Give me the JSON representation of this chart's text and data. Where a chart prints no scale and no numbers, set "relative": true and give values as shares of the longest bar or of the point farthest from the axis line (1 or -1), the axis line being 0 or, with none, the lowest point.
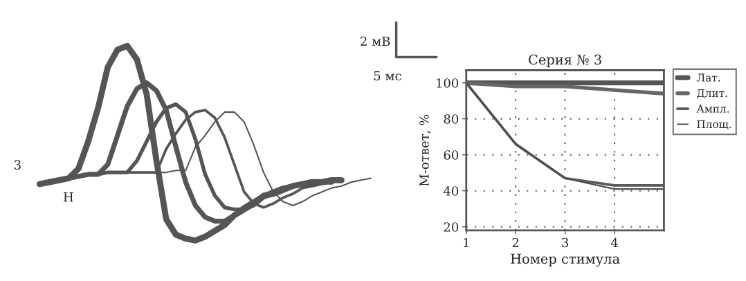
{
  "chart_data": [
    {
      "type": "line",
      "relative": true,
      "categories": [
        null,
        null,
        null,
        null,
        null,
        null,
        null,
        null,
        null,
        null,
        null,
        null,
        null,
        null,
        null,
        null,
        null,
        null,
        null,
        null,
        null,
        null,
        null,
        null,
        null,
        null,
        null,
        null,
        null,
        null,
        null,
        null,
        null,
        null,
        null
      ],
      "series": [
        {
          "color": "#555555",
          "values": [
            0.29,
            0.3,
            0.31,
            0.32,
            0.37,
            0.51,
            0.68,
            0.89,
            0.98,
            1.0,
            0.93,
            0.75,
            0.41,
            0.11,
            0.03,
            0.01,
            0.0,
            0.02,
            0.05,
            0.08,
            0.13,
            0.16,
            0.19,
            0.23,
            0.24,
            0.26,
            0.28,
            0.29,
            0.3,
            0.3,
            0.31,
            0.31,
            null,
            null,
            null
          ]
        },
        {
          "color": "#555555",
          "values": [
            0.29,
            0.3,
            0.31,
            0.32,
            0.33,
            0.34,
            0.34,
            0.39,
            0.54,
            0.69,
            0.78,
            0.81,
            0.77,
            0.67,
            0.48,
            0.3,
            0.18,
            0.12,
            0.1,
            0.1,
            0.13,
            0.17,
            0.2,
            0.23,
            0.25,
            0.27,
            0.28,
            0.29,
            0.3,
            0.3,
            0.3,
            null,
            null,
            null,
            null
          ]
        },
        {
          "color": "#555555",
          "values": [
            0.29,
            0.3,
            0.31,
            0.32,
            0.33,
            0.34,
            0.34,
            0.35,
            0.35,
            0.35,
            0.41,
            0.51,
            0.61,
            0.68,
            0.7,
            0.66,
            0.52,
            0.34,
            0.23,
            0.17,
            0.16,
            0.16,
            0.18,
            0.22,
            0.24,
            0.26,
            0.28,
            0.29,
            0.3,
            0.3,
            null,
            null,
            null,
            null,
            null
          ]
        },
        {
          "color": "#555555",
          "values": [
            0.29,
            0.3,
            0.31,
            0.32,
            0.33,
            0.34,
            0.34,
            0.35,
            0.35,
            0.35,
            0.35,
            0.35,
            0.35,
            0.47,
            0.55,
            0.62,
            0.66,
            0.67,
            0.63,
            0.53,
            0.39,
            0.25,
            0.19,
            0.17,
            0.19,
            0.22,
            0.24,
            0.27,
            0.28,
            0.29,
            0.3,
            0.31,
            null,
            null,
            null
          ]
        },
        {
          "color": "#555555",
          "values": [
            0.29,
            0.3,
            0.31,
            0.32,
            0.33,
            0.34,
            0.34,
            0.35,
            0.35,
            0.35,
            0.35,
            0.35,
            0.35,
            0.35,
            0.36,
            0.36,
            0.48,
            0.54,
            0.61,
            0.66,
            0.66,
            0.61,
            0.49,
            0.35,
            0.25,
            0.2,
            0.18,
            0.2,
            0.23,
            0.25,
            0.27,
            0.28,
            0.3,
            0.31,
            0.32
          ]
        }
      ],
      "annotations": [
        "2 мВ",
        "5 мс",
        "3",
        "Н"
      ]
    },
    {
      "type": "line",
      "title": "Серия № 3",
      "xlabel": "Номер стимула",
      "ylabel": "М-ответ, %",
      "x": [
        1,
        2,
        3,
        4,
        5
      ],
      "series": [
        {
          "name": "Лат.",
          "color": "#555555",
          "values": [
            100,
            100,
            100,
            100,
            100
          ]
        },
        {
          "name": "Длит.",
          "color": "#666666",
          "values": [
            100,
            98,
            98,
            96,
            94
          ]
        },
        {
          "name": "Ампл.",
          "color": "#5a5a5a",
          "values": [
            100,
            66,
            47,
            43,
            43
          ]
        },
        {
          "name": "Площ.",
          "color": "#4d4d4d",
          "values": [
            100,
            66,
            47,
            41,
            41
          ]
        }
      ],
      "xlim": [
        1,
        5
      ],
      "xticks": [
        1,
        2,
        3,
        4
      ],
      "ylim": [
        18,
        107
      ],
      "yticks": [
        20,
        40,
        60,
        80,
        100
      ],
      "grid": true,
      "legend": "right"
    }
  ]
}
